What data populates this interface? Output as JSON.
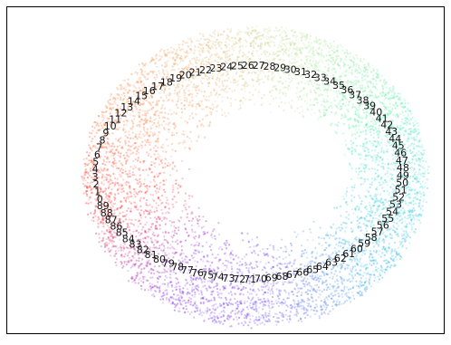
{
  "chart_data": {
    "type": "scatter",
    "description_visible": "ring-shaped point cloud with numbered labels 0-89 placed around the ring",
    "grid": false,
    "axes_ticks": false,
    "ring_labels": [
      "0",
      "1",
      "2",
      "3",
      "4",
      "5",
      "6",
      "7",
      "8",
      "9",
      "10",
      "11",
      "12",
      "13",
      "14",
      "15",
      "16",
      "17",
      "18",
      "19",
      "20",
      "21",
      "22",
      "23",
      "24",
      "25",
      "26",
      "27",
      "28",
      "29",
      "30",
      "31",
      "32",
      "33",
      "34",
      "35",
      "36",
      "37",
      "38",
      "39",
      "40",
      "41",
      "42",
      "43",
      "44",
      "45",
      "46",
      "47",
      "48",
      "49",
      "50",
      "51",
      "52",
      "53",
      "54",
      "55",
      "56",
      "57",
      "58",
      "59",
      "60",
      "61",
      "62",
      "63",
      "64",
      "65",
      "66",
      "67",
      "68",
      "69",
      "70",
      "71",
      "72",
      "73",
      "74",
      "75",
      "76",
      "77",
      "78",
      "79",
      "80",
      "81",
      "82",
      "83",
      "84",
      "85",
      "86",
      "87",
      "88",
      "89"
    ],
    "hue_sequence": [
      "#ff2b2b",
      "#ff7a3a",
      "#e8b070",
      "#bfe39a",
      "#4ef0a0",
      "#3fd6d8",
      "#2fb2e8",
      "#6a4cf0",
      "#8a2be2",
      "#ff2b2b"
    ]
  }
}
